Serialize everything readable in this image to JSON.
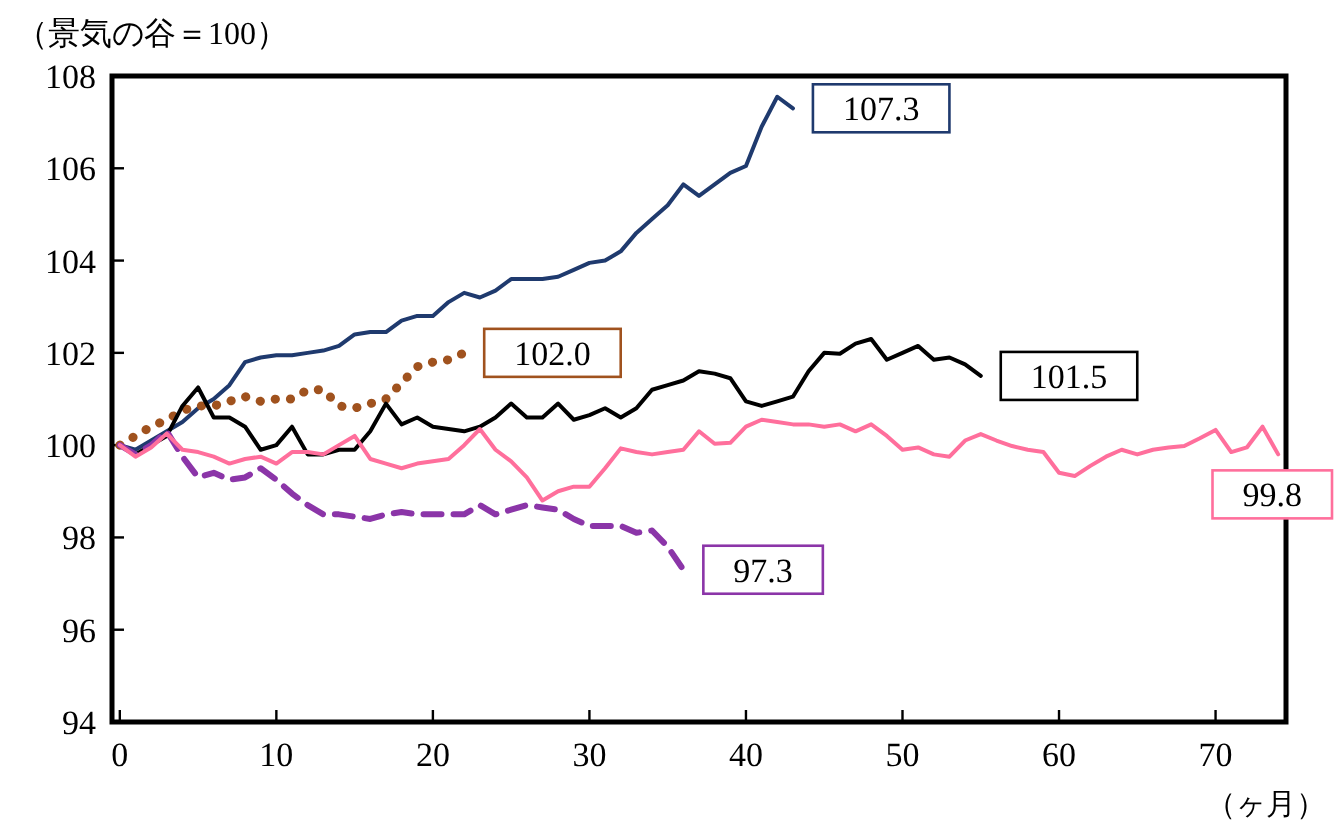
{
  "chart_data": {
    "type": "line",
    "xlabel": "（ヶ月）",
    "ylabel": "（景気の谷＝100）",
    "xlim": [
      -0.5,
      74.5
    ],
    "ylim": [
      94,
      108
    ],
    "xticks": [
      0,
      10,
      20,
      30,
      40,
      50,
      60,
      70
    ],
    "yticks": [
      94,
      96,
      98,
      100,
      102,
      104,
      106,
      108
    ],
    "grid": false,
    "x": [
      0,
      1,
      2,
      3,
      4,
      5,
      6,
      7,
      8,
      9,
      10,
      11,
      12,
      13,
      14,
      15,
      16,
      17,
      18,
      19,
      20,
      21,
      22,
      23,
      24,
      25,
      26,
      27,
      28,
      29,
      30,
      31,
      32,
      33,
      34,
      35,
      36,
      37,
      38,
      39,
      40,
      41,
      42,
      43,
      44,
      45,
      46,
      47,
      48,
      49,
      50,
      51,
      52,
      53,
      54,
      55,
      56,
      57,
      58,
      59,
      60,
      61,
      62,
      63,
      64,
      65,
      66,
      67,
      68,
      69,
      70,
      71,
      72,
      73,
      74
    ],
    "series": [
      {
        "color": "#1f3a6e",
        "line_style": "solid",
        "values": [
          100,
          99.9,
          100.1,
          100.3,
          100.5,
          100.8,
          101.0,
          101.3,
          101.8,
          101.9,
          101.95,
          101.95,
          102.0,
          102.05,
          102.15,
          102.4,
          102.45,
          102.45,
          102.7,
          102.8,
          102.8,
          103.1,
          103.3,
          103.2,
          103.35,
          103.6,
          103.6,
          103.6,
          103.65,
          103.8,
          103.95,
          104.0,
          104.2,
          104.6,
          104.9,
          105.2,
          105.65,
          105.4,
          105.65,
          105.9,
          106.05,
          106.9,
          107.55,
          107.3,
          null,
          null,
          null,
          null,
          null,
          null,
          null,
          null,
          null,
          null,
          null,
          null,
          null,
          null,
          null,
          null,
          null,
          null,
          null,
          null,
          null,
          null,
          null,
          null,
          null,
          null,
          null,
          null,
          null,
          null,
          null
        ],
        "value_labels": [
          null,
          null,
          null,
          null,
          null,
          null,
          null,
          null,
          null,
          null,
          null,
          null,
          null,
          null,
          null,
          null,
          null,
          null,
          null,
          null,
          null,
          null,
          null,
          null,
          null,
          null,
          null,
          null,
          null,
          null,
          null,
          null,
          null,
          null,
          null,
          null,
          null,
          null,
          null,
          null,
          null,
          null,
          null,
          "107.3",
          null,
          null,
          null,
          null,
          null,
          null,
          null,
          null,
          null,
          null,
          null,
          null,
          null,
          null,
          null,
          null,
          null,
          null,
          null,
          null,
          null,
          null,
          null,
          null,
          null,
          null,
          null,
          null,
          null,
          null,
          null
        ]
      },
      {
        "color": "#a0521e",
        "line_style": "dotted",
        "values": [
          100,
          100.2,
          100.4,
          100.55,
          100.75,
          100.85,
          100.85,
          100.95,
          101.05,
          100.95,
          101.0,
          101.0,
          101.2,
          101.2,
          100.85,
          100.8,
          100.9,
          101.0,
          101.35,
          101.7,
          101.8,
          101.85,
          102.0,
          null,
          null,
          null,
          null,
          null,
          null,
          null,
          null,
          null,
          null,
          null,
          null,
          null,
          null,
          null,
          null,
          null,
          null,
          null,
          null,
          null,
          null,
          null,
          null,
          null,
          null,
          null,
          null,
          null,
          null,
          null,
          null,
          null,
          null,
          null,
          null,
          null,
          null,
          null,
          null,
          null,
          null,
          null,
          null,
          null,
          null,
          null,
          null,
          null,
          null,
          null,
          null
        ],
        "value_labels": [
          null,
          null,
          null,
          null,
          null,
          null,
          null,
          null,
          null,
          null,
          null,
          null,
          null,
          null,
          null,
          null,
          null,
          null,
          null,
          null,
          null,
          null,
          "102.0",
          null,
          null,
          null,
          null,
          null,
          null,
          null,
          null,
          null,
          null,
          null,
          null,
          null,
          null,
          null,
          null,
          null,
          null,
          null,
          null,
          null,
          null,
          null,
          null,
          null,
          null,
          null,
          null,
          null,
          null,
          null,
          null,
          null,
          null,
          null,
          null,
          null,
          null,
          null,
          null,
          null,
          null,
          null,
          null,
          null,
          null,
          null,
          null,
          null,
          null,
          null,
          null
        ]
      },
      {
        "color": "#000000",
        "line_style": "solid",
        "values": [
          100,
          99.8,
          100.0,
          100.2,
          100.85,
          101.25,
          100.6,
          100.6,
          100.4,
          99.9,
          100.0,
          100.4,
          99.8,
          99.8,
          99.9,
          99.9,
          100.3,
          100.9,
          100.45,
          100.6,
          100.4,
          100.35,
          100.3,
          100.4,
          100.6,
          100.9,
          100.6,
          100.6,
          100.9,
          100.55,
          100.65,
          100.8,
          100.6,
          100.8,
          101.2,
          101.3,
          101.4,
          101.6,
          101.55,
          101.45,
          100.95,
          100.85,
          100.95,
          101.05,
          101.6,
          102.0,
          101.98,
          102.2,
          102.3,
          101.85,
          102.0,
          102.15,
          101.85,
          101.9,
          101.75,
          101.5,
          null,
          null,
          null,
          null,
          null,
          null,
          null,
          null,
          null,
          null,
          null,
          null,
          null,
          null,
          null,
          null,
          null,
          null,
          null
        ],
        "value_labels": [
          null,
          null,
          null,
          null,
          null,
          null,
          null,
          null,
          null,
          null,
          null,
          null,
          null,
          null,
          null,
          null,
          null,
          null,
          null,
          null,
          null,
          null,
          null,
          null,
          null,
          null,
          null,
          null,
          null,
          null,
          null,
          null,
          null,
          null,
          null,
          null,
          null,
          null,
          null,
          null,
          null,
          null,
          null,
          null,
          null,
          null,
          null,
          null,
          null,
          null,
          null,
          null,
          null,
          null,
          null,
          "101.5",
          null,
          null,
          null,
          null,
          null,
          null,
          null,
          null,
          null,
          null,
          null,
          null,
          null,
          null,
          null,
          null,
          null,
          null,
          null
        ]
      },
      {
        "color": "#8b35a8",
        "line_style": "dashed",
        "values": [
          100,
          99.8,
          100.0,
          100.3,
          99.75,
          99.3,
          99.4,
          99.25,
          99.3,
          99.5,
          99.25,
          98.95,
          98.7,
          98.5,
          98.5,
          98.45,
          98.4,
          98.5,
          98.55,
          98.5,
          98.5,
          98.5,
          98.5,
          98.7,
          98.5,
          98.6,
          98.7,
          98.65,
          98.6,
          98.4,
          98.25,
          98.25,
          98.25,
          98.1,
          98.15,
          97.8,
          97.3,
          null,
          null,
          null,
          null,
          null,
          null,
          null,
          null,
          null,
          null,
          null,
          null,
          null,
          null,
          null,
          null,
          null,
          null,
          null,
          null,
          null,
          null,
          null,
          null,
          null,
          null,
          null,
          null,
          null,
          null,
          null,
          null,
          null,
          null,
          null,
          null,
          null,
          null
        ],
        "value_labels": [
          null,
          null,
          null,
          null,
          null,
          null,
          null,
          null,
          null,
          null,
          null,
          null,
          null,
          null,
          null,
          null,
          null,
          null,
          null,
          null,
          null,
          null,
          null,
          null,
          null,
          null,
          null,
          null,
          null,
          null,
          null,
          null,
          null,
          null,
          null,
          null,
          "97.3",
          null,
          null,
          null,
          null,
          null,
          null,
          null,
          null,
          null,
          null,
          null,
          null,
          null,
          null,
          null,
          null,
          null,
          null,
          null,
          null,
          null,
          null,
          null,
          null,
          null,
          null,
          null,
          null,
          null,
          null,
          null,
          null,
          null,
          null,
          null,
          null,
          null,
          null
        ]
      },
      {
        "color": "#ff6f9c",
        "line_style": "solid",
        "values": [
          100,
          99.75,
          99.95,
          100.25,
          99.9,
          99.85,
          99.75,
          99.6,
          99.7,
          99.75,
          99.6,
          99.85,
          99.85,
          99.8,
          100.0,
          100.2,
          99.7,
          99.6,
          99.5,
          99.6,
          99.65,
          99.7,
          100.0,
          100.35,
          99.9,
          99.65,
          99.3,
          98.8,
          99.0,
          99.1,
          99.1,
          99.5,
          99.93,
          99.85,
          99.8,
          99.85,
          99.9,
          100.3,
          100.03,
          100.05,
          100.4,
          100.55,
          100.5,
          100.45,
          100.45,
          100.4,
          100.45,
          100.3,
          100.45,
          100.2,
          99.9,
          99.95,
          99.8,
          99.75,
          100.1,
          100.24,
          100.1,
          99.98,
          99.9,
          99.85,
          99.4,
          99.33,
          99.55,
          99.75,
          99.9,
          99.8,
          99.9,
          99.95,
          99.98,
          100.15,
          100.33,
          99.85,
          99.95,
          100.4,
          99.8
        ],
        "value_labels": [
          null,
          null,
          null,
          null,
          null,
          null,
          null,
          null,
          null,
          null,
          null,
          null,
          null,
          null,
          null,
          null,
          null,
          null,
          null,
          null,
          null,
          null,
          null,
          null,
          null,
          null,
          null,
          null,
          null,
          null,
          null,
          null,
          null,
          null,
          null,
          null,
          null,
          null,
          null,
          null,
          null,
          null,
          null,
          null,
          null,
          null,
          null,
          null,
          null,
          null,
          null,
          null,
          null,
          null,
          null,
          null,
          null,
          null,
          null,
          null,
          null,
          null,
          null,
          null,
          null,
          null,
          null,
          null,
          null,
          null,
          null,
          null,
          null,
          null,
          "99.8"
        ]
      }
    ]
  }
}
